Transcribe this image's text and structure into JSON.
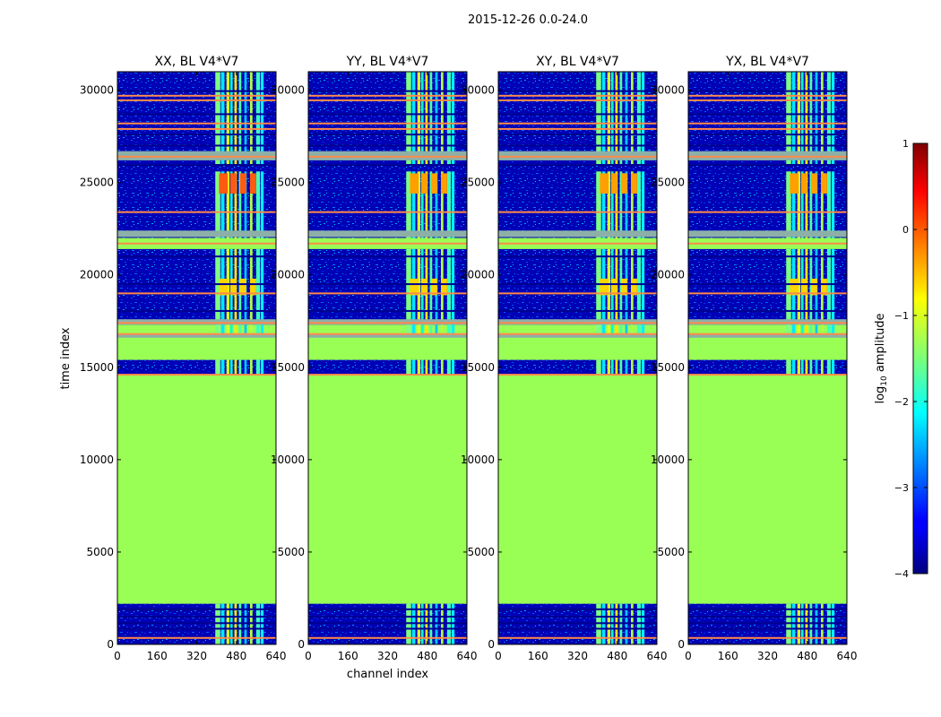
{
  "figure": {
    "suptitle": "2015-12-26 0.0-24.0",
    "ylabel": "time index",
    "xlabel": "channel index"
  },
  "chart_data": {
    "type": "heatmap",
    "x_range": [
      0,
      640
    ],
    "y_range": [
      0,
      31000
    ],
    "x_ticks": [
      0,
      160,
      320,
      480,
      640
    ],
    "y_ticks": [
      0,
      5000,
      10000,
      15000,
      20000,
      25000,
      30000
    ],
    "x_tick_labels": [
      "0",
      "160",
      "320",
      "480",
      "640"
    ],
    "y_tick_labels": [
      "0",
      "5000",
      "10000",
      "15000",
      "20000",
      "25000",
      "30000"
    ],
    "panels": [
      {
        "title": "XX, BL V4*V7",
        "show_xlabel": false
      },
      {
        "title": "YY, BL V4*V7",
        "show_xlabel": true
      },
      {
        "title": "XY, BL V4*V7",
        "show_xlabel": false
      },
      {
        "title": "YX, BL V4*V7",
        "show_xlabel": false
      }
    ],
    "colorbar": {
      "label_main": "log",
      "label_sub": "10",
      "label_rest": " amplitude",
      "range": [
        -4,
        1
      ],
      "ticks": [
        -4,
        -3,
        -2,
        -1,
        0,
        1
      ],
      "tick_labels": [
        "−4",
        "−3",
        "−2",
        "−1",
        "0",
        "1"
      ]
    },
    "colors": {
      "flagged_fill": "#99ff55",
      "band_grey": "#8cb0a8",
      "flag_line": "#ff8a4a",
      "deep_blue": "#000090"
    }
  }
}
